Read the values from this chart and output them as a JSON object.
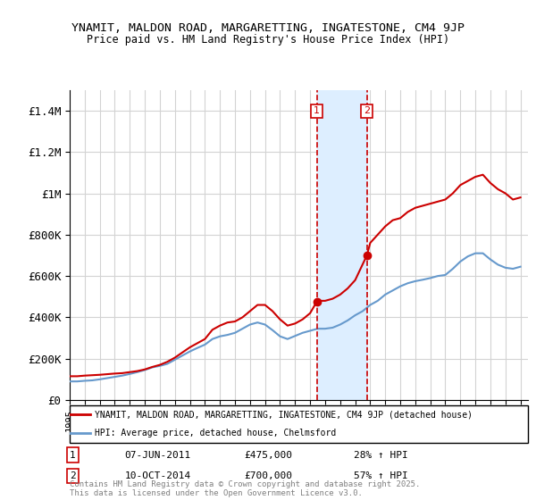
{
  "title_line1": "YNAMIT, MALDON ROAD, MARGARETTING, INGATESTONE, CM4 9JP",
  "title_line2": "Price paid vs. HM Land Registry's House Price Index (HPI)",
  "ylabel_ticks": [
    "£0",
    "£200K",
    "£400K",
    "£600K",
    "£800K",
    "£1M",
    "£1.2M",
    "£1.4M"
  ],
  "ytick_values": [
    0,
    200000,
    400000,
    600000,
    800000,
    1000000,
    1200000,
    1400000
  ],
  "ylim": [
    0,
    1500000
  ],
  "xlim_start": 1995.0,
  "xlim_end": 2025.5,
  "marker1_x": 2011.44,
  "marker1_y": 475000,
  "marker1_label": "1",
  "marker1_date": "07-JUN-2011",
  "marker1_price": "£475,000",
  "marker1_hpi": "28% ↑ HPI",
  "marker2_x": 2014.78,
  "marker2_y": 700000,
  "marker2_label": "2",
  "marker2_date": "10-OCT-2014",
  "marker2_price": "£700,000",
  "marker2_hpi": "57% ↑ HPI",
  "house_color": "#cc0000",
  "hpi_color": "#6699cc",
  "shade_color": "#ddeeff",
  "marker_box_color": "#cc0000",
  "legend_label_house": "YNAMIT, MALDON ROAD, MARGARETTING, INGATESTONE, CM4 9JP (detached house)",
  "legend_label_hpi": "HPI: Average price, detached house, Chelmsford",
  "footer": "Contains HM Land Registry data © Crown copyright and database right 2025.\nThis data is licensed under the Open Government Licence v3.0.",
  "house_prices_x": [
    1995.0,
    1995.5,
    1996.0,
    1996.5,
    1997.0,
    1997.5,
    1998.0,
    1998.5,
    1999.0,
    1999.5,
    2000.0,
    2000.5,
    2001.0,
    2001.5,
    2002.0,
    2002.5,
    2003.0,
    2003.5,
    2004.0,
    2004.5,
    2005.0,
    2005.5,
    2006.0,
    2006.5,
    2007.0,
    2007.5,
    2008.0,
    2008.5,
    2009.0,
    2009.5,
    2010.0,
    2010.5,
    2011.0,
    2011.44,
    2011.5,
    2012.0,
    2012.5,
    2013.0,
    2013.5,
    2014.0,
    2014.78,
    2015.0,
    2015.5,
    2016.0,
    2016.5,
    2017.0,
    2017.5,
    2018.0,
    2018.5,
    2019.0,
    2019.5,
    2020.0,
    2020.5,
    2021.0,
    2021.5,
    2022.0,
    2022.5,
    2023.0,
    2023.5,
    2024.0,
    2024.5,
    2025.0
  ],
  "house_prices_y": [
    115000,
    115000,
    118000,
    120000,
    122000,
    125000,
    128000,
    130000,
    135000,
    140000,
    148000,
    160000,
    170000,
    185000,
    205000,
    230000,
    255000,
    275000,
    295000,
    340000,
    360000,
    375000,
    380000,
    400000,
    430000,
    460000,
    460000,
    430000,
    390000,
    360000,
    370000,
    390000,
    420000,
    475000,
    480000,
    480000,
    490000,
    510000,
    540000,
    580000,
    700000,
    760000,
    800000,
    840000,
    870000,
    880000,
    910000,
    930000,
    940000,
    950000,
    960000,
    970000,
    1000000,
    1040000,
    1060000,
    1080000,
    1090000,
    1050000,
    1020000,
    1000000,
    970000,
    980000
  ],
  "hpi_x": [
    1995.0,
    1995.5,
    1996.0,
    1996.5,
    1997.0,
    1997.5,
    1998.0,
    1998.5,
    1999.0,
    1999.5,
    2000.0,
    2000.5,
    2001.0,
    2001.5,
    2002.0,
    2002.5,
    2003.0,
    2003.5,
    2004.0,
    2004.5,
    2005.0,
    2005.5,
    2006.0,
    2006.5,
    2007.0,
    2007.5,
    2008.0,
    2008.5,
    2009.0,
    2009.5,
    2010.0,
    2010.5,
    2011.0,
    2011.5,
    2012.0,
    2012.5,
    2013.0,
    2013.5,
    2014.0,
    2014.5,
    2015.0,
    2015.5,
    2016.0,
    2016.5,
    2017.0,
    2017.5,
    2018.0,
    2018.5,
    2019.0,
    2019.5,
    2020.0,
    2020.5,
    2021.0,
    2021.5,
    2022.0,
    2022.5,
    2023.0,
    2023.5,
    2024.0,
    2024.5,
    2025.0
  ],
  "hpi_y": [
    90000,
    90000,
    93000,
    95000,
    100000,
    106000,
    112000,
    118000,
    126000,
    135000,
    145000,
    158000,
    165000,
    175000,
    195000,
    215000,
    235000,
    252000,
    268000,
    295000,
    308000,
    315000,
    325000,
    345000,
    365000,
    375000,
    365000,
    338000,
    308000,
    295000,
    310000,
    325000,
    335000,
    345000,
    345000,
    350000,
    365000,
    385000,
    410000,
    430000,
    460000,
    480000,
    510000,
    530000,
    550000,
    565000,
    575000,
    582000,
    590000,
    600000,
    605000,
    635000,
    670000,
    695000,
    710000,
    710000,
    680000,
    655000,
    640000,
    635000,
    645000
  ]
}
